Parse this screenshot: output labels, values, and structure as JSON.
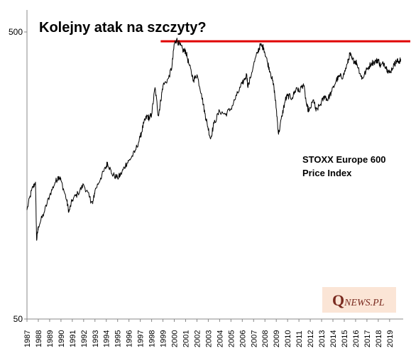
{
  "chart_data": {
    "type": "line",
    "title": "Kolejny atak na szczyty?",
    "annotation": [
      "STOXX Europe 600",
      "Price Index"
    ],
    "y_scale": "log",
    "ylim": [
      50,
      500
    ],
    "y_ticks": [
      "500",
      "50"
    ],
    "x_ticks": [
      "1987",
      "1988",
      "1989",
      "1990",
      "1991",
      "1992",
      "1993",
      "1994",
      "1995",
      "1996",
      "1997",
      "1998",
      "1999",
      "2000",
      "2001",
      "2002",
      "2003",
      "2004",
      "2005",
      "2006",
      "2007",
      "2008",
      "2009",
      "2010",
      "2011",
      "2012",
      "2013",
      "2014",
      "2015",
      "2016",
      "2017",
      "2018",
      "2019"
    ],
    "xlim": [
      1987.0,
      2020.2
    ],
    "series": [
      {
        "x": [
          1987.0,
          1987.4,
          1987.75,
          1987.85,
          1988.0,
          1988.5,
          1989.0,
          1989.5,
          1989.8,
          1990.0,
          1990.5,
          1990.7,
          1991.0,
          1991.5,
          1992.0,
          1992.5,
          1992.8,
          1993.0,
          1993.5,
          1994.0,
          1994.1,
          1994.5,
          1995.0,
          1995.3,
          1995.7,
          1996.0,
          1996.5,
          1997.0,
          1997.3,
          1997.6,
          1997.8,
          1998.0,
          1998.3,
          1998.6,
          1998.8,
          1999.0,
          1999.5,
          1999.8,
          2000.0,
          2000.2,
          2000.5,
          2000.8,
          2001.0,
          2001.3,
          2001.7,
          2002.0,
          2002.4,
          2002.7,
          2002.9,
          2003.2,
          2003.5,
          2004.0,
          2004.5,
          2005.0,
          2005.5,
          2006.0,
          2006.4,
          2006.5,
          2007.0,
          2007.4,
          2007.6,
          2007.9,
          2008.2,
          2008.5,
          2008.8,
          2009.0,
          2009.2,
          2009.5,
          2009.8,
          2010.0,
          2010.4,
          2010.8,
          2011.0,
          2011.4,
          2011.7,
          2011.9,
          2012.3,
          2012.5,
          2012.9,
          2013.3,
          2013.5,
          2013.9,
          2014.3,
          2014.6,
          2014.9,
          2015.3,
          2015.5,
          2015.7,
          2016.0,
          2016.1,
          2016.5,
          2016.6,
          2017.0,
          2017.4,
          2017.8,
          2018.0,
          2018.2,
          2018.5,
          2018.8,
          2019.0,
          2019.4,
          2019.6,
          2019.8,
          2020.0
        ],
        "y": [
          120,
          140,
          150,
          94,
          105,
          117,
          135,
          150,
          157,
          152,
          130,
          118,
          130,
          137,
          147,
          133,
          126,
          140,
          155,
          170,
          176,
          160,
          155,
          160,
          172,
          178,
          190,
          215,
          240,
          255,
          250,
          258,
          320,
          255,
          288,
          325,
          345,
          380,
          455,
          470,
          450,
          430,
          430,
          385,
          340,
          355,
          305,
          260,
          240,
          212,
          240,
          265,
          258,
          270,
          300,
          330,
          355,
          320,
          385,
          430,
          450,
          440,
          395,
          360,
          320,
          270,
          220,
          255,
          290,
          300,
          295,
          320,
          310,
          330,
          275,
          265,
          290,
          265,
          280,
          300,
          290,
          310,
          340,
          350,
          350,
          390,
          420,
          400,
          395,
          390,
          350,
          345,
          370,
          390,
          395,
          400,
          380,
          390,
          370,
          360,
          385,
          395,
          395,
          400
        ]
      }
    ],
    "reference_line": {
      "y": 464,
      "color": "#e00000"
    }
  },
  "logo": {
    "q": "Q",
    "rest": "NEWS.PL"
  }
}
